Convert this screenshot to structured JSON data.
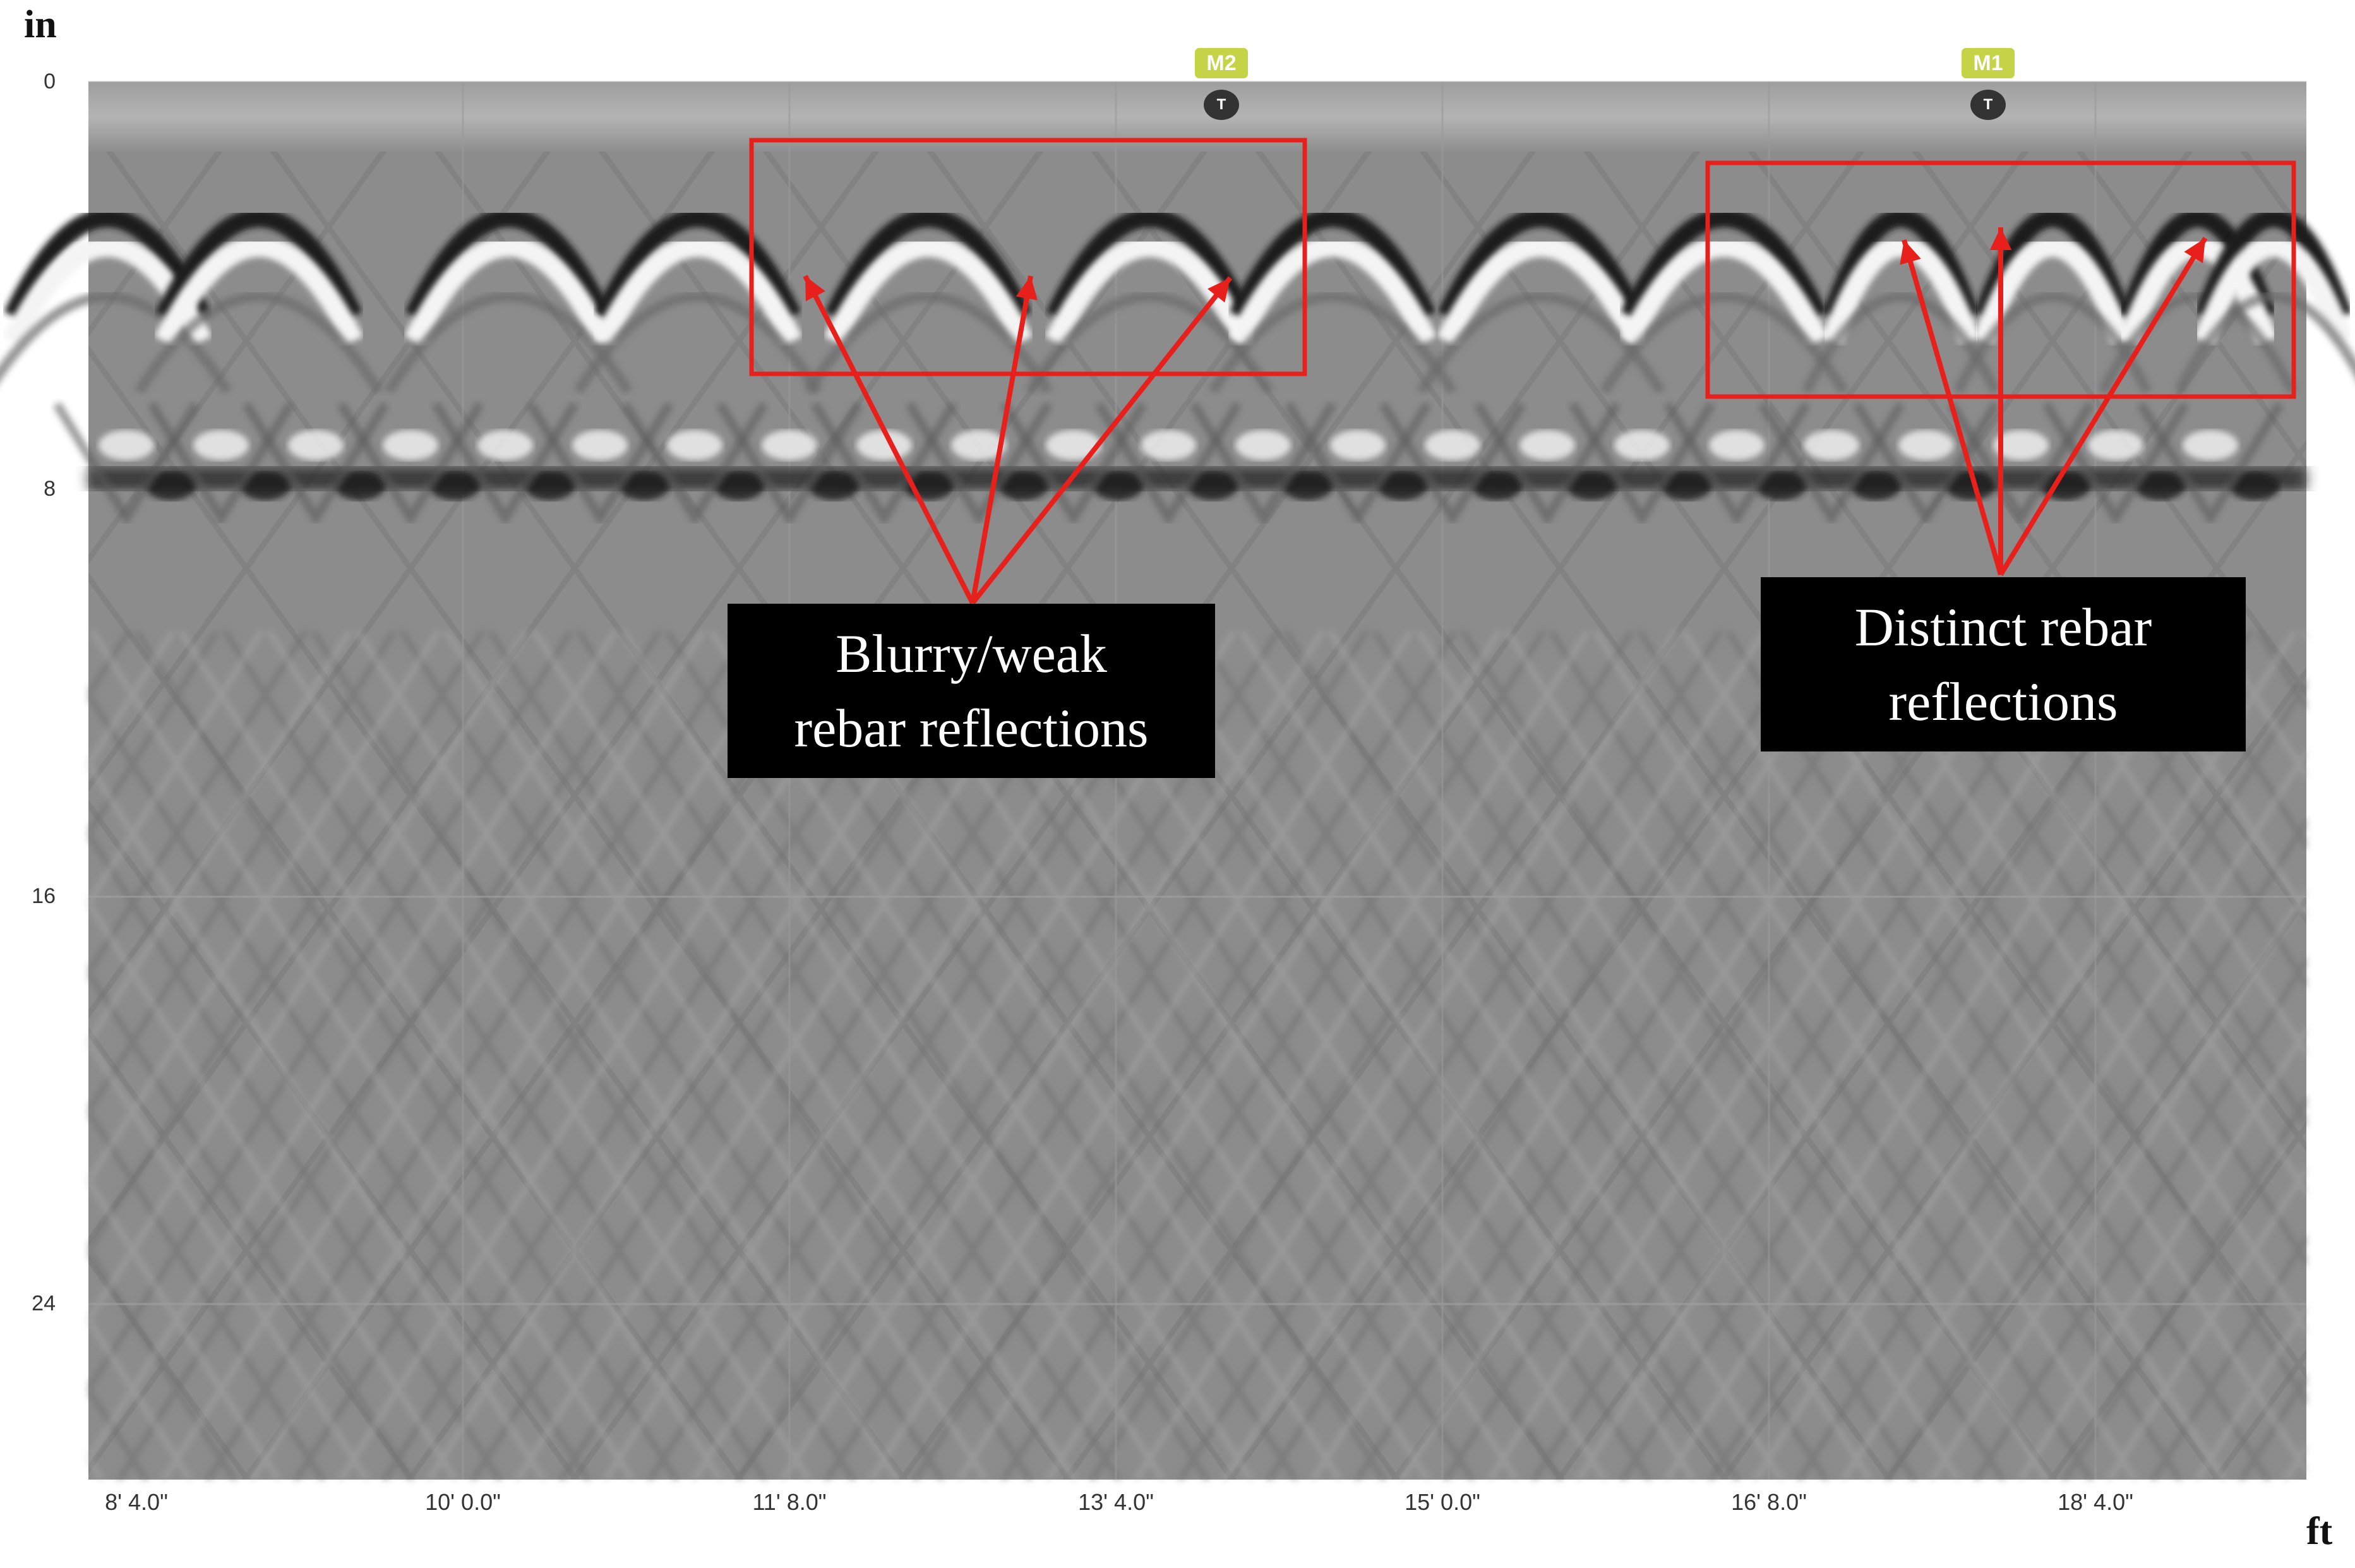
{
  "axes": {
    "depth_unit": "in",
    "distance_unit": "ft",
    "depth_ticks": [
      "0",
      "8",
      "16",
      "24"
    ],
    "distance_ticks": [
      "8' 4.0\"",
      "10' 0.0\"",
      "11' 8.0\"",
      "13' 4.0\"",
      "15' 0.0\"",
      "16' 8.0\"",
      "18' 4.0\""
    ]
  },
  "markers": [
    {
      "label": "M2",
      "icon_text": "T",
      "icon": "target-icon"
    },
    {
      "label": "M1",
      "icon_text": "T",
      "icon": "target-icon"
    }
  ],
  "annotations": {
    "left_note": {
      "line1": "Blurry/weak",
      "line2": "rebar reflections"
    },
    "right_note": {
      "line1": "Distinct rebar",
      "line2": "reflections"
    }
  },
  "colors": {
    "annotation": "#e8201c",
    "marker_badge": "#c5d447",
    "background_gray": "#8d8d8d"
  }
}
